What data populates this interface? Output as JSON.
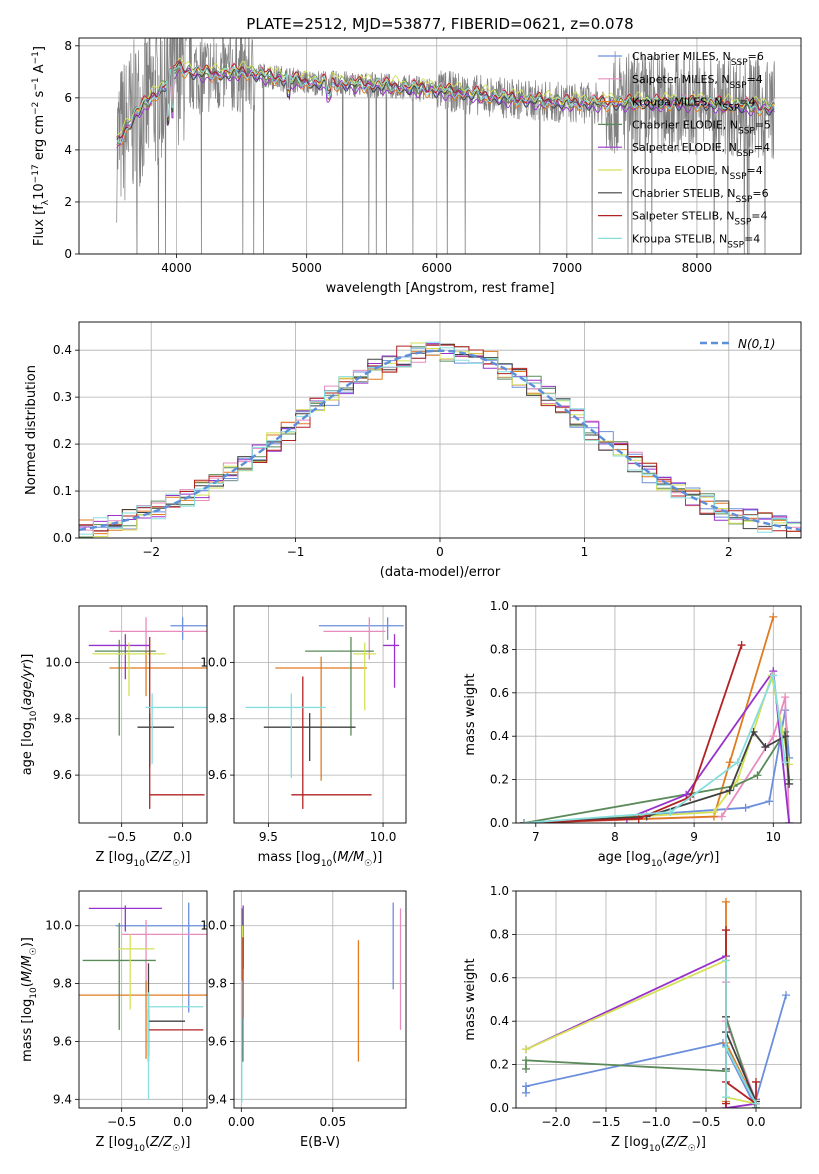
{
  "chart_data": [
    {
      "id": "spectrum",
      "type": "line",
      "title": "PLATE=2512, MJD=53877, FIBERID=0621, z=0.078",
      "xlabel": "wavelength [Angstrom, rest frame]",
      "ylabel": "Flux [f_λ10^-17 erg cm^-2 s^-1 A^-1]",
      "xlim": [
        3250,
        8800
      ],
      "ylim": [
        0,
        8.3
      ],
      "xticks": [
        4000,
        5000,
        6000,
        7000,
        8000
      ],
      "yticks": [
        0,
        2,
        4,
        6,
        8
      ],
      "data_range": [
        3540,
        8600
      ],
      "legend_location": "right",
      "legend": [
        {
          "label": "Chabrier MILES, N_SSP=6",
          "color": "#6b8fdc"
        },
        {
          "label": "Salpeter MILES, N_SSP=4",
          "color": "#e88bbd"
        },
        {
          "label": "Kroupa MILES, N_SSP=4",
          "color": "#e07b20"
        },
        {
          "label": "Chabrier ELODIE, N_SSP=5",
          "color": "#5a8a5a"
        },
        {
          "label": "Salpeter ELODIE, N_SSP=4",
          "color": "#9932cc"
        },
        {
          "label": "Kroupa ELODIE, N_SSP=4",
          "color": "#d4e157"
        },
        {
          "label": "Chabrier STELIB, N_SSP=6",
          "color": "#404040"
        },
        {
          "label": "Salpeter STELIB, N_SSP=4",
          "color": "#b22222"
        },
        {
          "label": "Kroupa STELIB, N_SSP=4",
          "color": "#87dede"
        }
      ],
      "continuum": {
        "x": [
          3540,
          3700,
          3900,
          4000,
          4100,
          4300,
          4500,
          5000,
          5500,
          6000,
          6500,
          7000,
          7500,
          8000,
          8600
        ],
        "y": [
          4.2,
          5.5,
          6.4,
          7.2,
          7.0,
          6.9,
          7.0,
          6.6,
          6.5,
          6.3,
          6.0,
          5.8,
          5.8,
          5.8,
          5.6
        ]
      }
    },
    {
      "id": "residuals",
      "type": "histogram",
      "xlabel": "(data-model)/error",
      "ylabel": "Normed distribution",
      "xlim": [
        -2.5,
        2.5
      ],
      "ylim": [
        0,
        0.46
      ],
      "xticks": [
        -2,
        -1,
        0,
        1,
        2
      ],
      "yticks": [
        0.0,
        0.1,
        0.2,
        0.3,
        0.4
      ],
      "bin_width": 0.1,
      "gaussian_label": "N(0,1)",
      "legend_location": "top-right",
      "grid": true
    },
    {
      "id": "age_vs_Z",
      "type": "errorbar",
      "xlabel": "Z [log10(Z/Z☉)]",
      "ylabel": "age  [log10(age/yr)]",
      "xlim": [
        -0.85,
        0.2
      ],
      "ylim": [
        9.43,
        10.2
      ],
      "xticks": [
        -0.5,
        0.0
      ],
      "yticks": [
        9.6,
        9.8,
        10.0
      ],
      "points": [
        {
          "x": 0.0,
          "y": 10.13,
          "xerr": [
            0.1,
            0.2
          ],
          "yerr": [
            0.05,
            0.03
          ],
          "color": "#6b8fdc"
        },
        {
          "x": -0.3,
          "y": 10.11,
          "xerr": [
            0.3,
            0.5
          ],
          "yerr": [
            0.08,
            0.05
          ],
          "color": "#e88bbd"
        },
        {
          "x": -0.3,
          "y": 9.98,
          "xerr": [
            0.3,
            0.5
          ],
          "yerr": [
            0.1,
            0.06
          ],
          "color": "#e07b20"
        },
        {
          "x": -0.52,
          "y": 10.04,
          "xerr": [
            0.2,
            0.3
          ],
          "yerr": [
            0.3,
            0.04
          ],
          "color": "#5a8a5a"
        },
        {
          "x": -0.47,
          "y": 10.06,
          "xerr": [
            0.3,
            0.2
          ],
          "yerr": [
            0.12,
            0.04
          ],
          "color": "#9932cc"
        },
        {
          "x": -0.44,
          "y": 10.03,
          "xerr": [
            0.3,
            0.3
          ],
          "yerr": [
            0.15,
            0.04
          ],
          "color": "#d4e157"
        },
        {
          "x": -0.27,
          "y": 9.77,
          "xerr": [
            0.1,
            0.2
          ],
          "yerr": [
            0.14,
            0.05
          ],
          "color": "#404040"
        },
        {
          "x": -0.27,
          "y": 9.53,
          "xerr": [
            0.0,
            0.45
          ],
          "yerr": [
            0.05,
            0.56
          ],
          "color": "#b22222"
        },
        {
          "x": -0.25,
          "y": 9.84,
          "xerr": [
            0.05,
            0.45
          ],
          "yerr": [
            0.2,
            0.05
          ],
          "color": "#87dede"
        }
      ]
    },
    {
      "id": "age_vs_mass",
      "type": "errorbar",
      "xlabel": "mass [log10(M/M☉)]",
      "ylabel": "",
      "xlim": [
        9.35,
        10.1
      ],
      "ylim": [
        9.43,
        10.2
      ],
      "xticks": [
        9.5,
        10.0
      ],
      "yticks": [
        9.6,
        9.8,
        10.0
      ],
      "points": [
        {
          "x": 10.02,
          "y": 10.13,
          "xerr": [
            0.3,
            0.07
          ],
          "yerr": [
            0.05,
            0.03
          ],
          "color": "#6b8fdc"
        },
        {
          "x": 9.94,
          "y": 10.11,
          "xerr": [
            0.2,
            0.07
          ],
          "yerr": [
            0.1,
            0.05
          ],
          "color": "#e88bbd"
        },
        {
          "x": 9.73,
          "y": 9.98,
          "xerr": [
            0.2,
            0.2
          ],
          "yerr": [
            0.4,
            0.04
          ],
          "color": "#e07b20"
        },
        {
          "x": 9.86,
          "y": 10.04,
          "xerr": [
            0.2,
            0.1
          ],
          "yerr": [
            0.3,
            0.05
          ],
          "color": "#5a8a5a"
        },
        {
          "x": 10.05,
          "y": 10.06,
          "xerr": [
            0.05,
            0.02
          ],
          "yerr": [
            0.15,
            0.04
          ],
          "color": "#9932cc"
        },
        {
          "x": 9.92,
          "y": 10.03,
          "xerr": [
            0.05,
            0.05
          ],
          "yerr": [
            0.2,
            0.04
          ],
          "color": "#d4e157"
        },
        {
          "x": 9.68,
          "y": 9.77,
          "xerr": [
            0.2,
            0.2
          ],
          "yerr": [
            0.12,
            0.05
          ],
          "color": "#404040"
        },
        {
          "x": 9.65,
          "y": 9.53,
          "xerr": [
            0.05,
            0.3
          ],
          "yerr": [
            0.05,
            0.42
          ],
          "color": "#b22222"
        },
        {
          "x": 9.6,
          "y": 9.84,
          "xerr": [
            0.2,
            0.15
          ],
          "yerr": [
            0.25,
            0.05
          ],
          "color": "#87dede"
        }
      ]
    },
    {
      "id": "weight_vs_age",
      "type": "line",
      "xlabel": "age  [log10(age/yr)]",
      "ylabel": "mass weight",
      "xlim": [
        6.75,
        10.35
      ],
      "ylim": [
        0.0,
        1.0
      ],
      "xticks": [
        7,
        8,
        9,
        10
      ],
      "yticks": [
        0.0,
        0.2,
        0.4,
        0.6,
        0.8,
        1.0
      ],
      "grid": true,
      "series": [
        {
          "color": "#6b8fdc",
          "x": [
            6.85,
            9.65,
            9.95,
            10.15,
            10.2
          ],
          "y": [
            0.0,
            0.07,
            0.1,
            0.52,
            0.3
          ]
        },
        {
          "color": "#e88bbd",
          "x": [
            6.85,
            9.35,
            10.0,
            10.15,
            10.2
          ],
          "y": [
            0.0,
            0.03,
            0.4,
            0.58,
            0.0
          ]
        },
        {
          "color": "#e07b20",
          "x": [
            6.85,
            9.25,
            9.45,
            10.0
          ],
          "y": [
            0.0,
            0.03,
            0.28,
            0.95
          ]
        },
        {
          "color": "#5a8a5a",
          "x": [
            6.85,
            9.5,
            9.8,
            10.15,
            10.2
          ],
          "y": [
            0.0,
            0.17,
            0.22,
            0.42,
            0.2
          ]
        },
        {
          "color": "#9932cc",
          "x": [
            6.85,
            8.15,
            8.9,
            10.0,
            10.2
          ],
          "y": [
            0.0,
            0.02,
            0.13,
            0.7,
            0.0
          ]
        },
        {
          "color": "#d4e157",
          "x": [
            6.85,
            9.25,
            9.55,
            9.98,
            10.2
          ],
          "y": [
            0.0,
            0.05,
            0.2,
            0.68,
            0.27
          ]
        },
        {
          "color": "#404040",
          "x": [
            6.85,
            8.4,
            9.45,
            9.75,
            9.9,
            10.15,
            10.2
          ],
          "y": [
            0.0,
            0.03,
            0.15,
            0.42,
            0.35,
            0.4,
            0.18
          ]
        },
        {
          "color": "#b22222",
          "x": [
            6.85,
            8.3,
            8.95,
            9.6
          ],
          "y": [
            0.0,
            0.02,
            0.12,
            0.82
          ]
        },
        {
          "color": "#87dede",
          "x": [
            6.85,
            8.7,
            9.55,
            10.0,
            10.15
          ],
          "y": [
            0.0,
            0.05,
            0.28,
            0.68,
            0.28
          ]
        }
      ]
    },
    {
      "id": "mass_vs_Z",
      "type": "errorbar",
      "xlabel": "Z [log10(Z/Z☉)]",
      "ylabel": "mass [log10(M/M☉)]",
      "xlim": [
        -0.85,
        0.2
      ],
      "ylim": [
        9.37,
        10.12
      ],
      "xticks": [
        -0.5,
        0.0
      ],
      "yticks": [
        9.4,
        9.6,
        9.8,
        10.0
      ],
      "points": [
        {
          "x": 0.05,
          "y": 10.0,
          "xerr": [
            0.6,
            0.15
          ],
          "yerr": [
            0.3,
            0.08
          ],
          "color": "#6b8fdc"
        },
        {
          "x": -0.3,
          "y": 9.97,
          "xerr": [
            0.2,
            0.5
          ],
          "yerr": [
            0.2,
            0.05
          ],
          "color": "#e88bbd"
        },
        {
          "x": -0.3,
          "y": 9.76,
          "xerr": [
            0.6,
            0.5
          ],
          "yerr": [
            0.22,
            0.05
          ],
          "color": "#e07b20"
        },
        {
          "x": -0.52,
          "y": 9.88,
          "xerr": [
            0.3,
            0.3
          ],
          "yerr": [
            0.24,
            0.13
          ],
          "color": "#5a8a5a"
        },
        {
          "x": -0.47,
          "y": 10.06,
          "xerr": [
            0.3,
            0.3
          ],
          "yerr": [
            0.08,
            0.01
          ],
          "color": "#9932cc"
        },
        {
          "x": -0.43,
          "y": 9.92,
          "xerr": [
            0.1,
            0.2
          ],
          "yerr": [
            0.21,
            0.05
          ],
          "color": "#d4e157"
        },
        {
          "x": -0.28,
          "y": 9.67,
          "xerr": [
            0.0,
            0.3
          ],
          "yerr": [
            0.14,
            0.2
          ],
          "color": "#404040"
        },
        {
          "x": -0.28,
          "y": 9.64,
          "xerr": [
            0.0,
            0.45
          ],
          "yerr": [
            0.09,
            0.07
          ],
          "color": "#b22222"
        },
        {
          "x": -0.28,
          "y": 9.72,
          "xerr": [
            0.0,
            0.45
          ],
          "yerr": [
            0.32,
            0.05
          ],
          "color": "#87dede"
        }
      ]
    },
    {
      "id": "mass_vs_ebv",
      "type": "errorbar",
      "xlabel": "E(B-V)",
      "ylabel": "",
      "xlim": [
        -0.004,
        0.09
      ],
      "ylim": [
        9.37,
        10.12
      ],
      "xticks": [
        0.0,
        0.05
      ],
      "yticks": [
        9.4,
        9.6,
        9.8,
        10.0
      ],
      "points": [
        {
          "x": 0.083,
          "y": 9.93,
          "xerr": [
            0,
            0
          ],
          "yerr": [
            0.15,
            0.15
          ],
          "color": "#6b8fdc"
        },
        {
          "x": 0.087,
          "y": 9.85,
          "xerr": [
            0,
            0
          ],
          "yerr": [
            0.21,
            0.21
          ],
          "color": "#e88bbd"
        },
        {
          "x": 0.064,
          "y": 9.74,
          "xerr": [
            0,
            0
          ],
          "yerr": [
            0.21,
            0.21
          ],
          "color": "#e07b20"
        },
        {
          "x": 0.0005,
          "y": 9.85,
          "xerr": [
            0,
            0
          ],
          "yerr": [
            0.21,
            0.21
          ],
          "color": "#5a8a5a"
        },
        {
          "x": 0.001,
          "y": 9.96,
          "xerr": [
            0,
            0
          ],
          "yerr": [
            0.11,
            0.11
          ],
          "color": "#9932cc"
        },
        {
          "x": 0.0007,
          "y": 9.9,
          "xerr": [
            0,
            0
          ],
          "yerr": [
            0.1,
            0.1
          ],
          "color": "#d4e157"
        },
        {
          "x": 0.0008,
          "y": 9.65,
          "xerr": [
            0,
            0
          ],
          "yerr": [
            0.12,
            0.12
          ],
          "color": "#404040"
        },
        {
          "x": 0.0009,
          "y": 9.82,
          "xerr": [
            0,
            0
          ],
          "yerr": [
            0.14,
            0.14
          ],
          "color": "#b22222"
        },
        {
          "x": 0.0003,
          "y": 9.6,
          "xerr": [
            0,
            0
          ],
          "yerr": [
            0.21,
            0.21
          ],
          "color": "#87dede"
        }
      ]
    },
    {
      "id": "weight_vs_Z",
      "type": "line",
      "xlabel": "Z [log10(Z/Z☉)]",
      "ylabel": "mass weight",
      "xlim": [
        -2.4,
        0.45
      ],
      "ylim": [
        0.0,
        1.0
      ],
      "xticks": [
        -2.0,
        -1.5,
        -1.0,
        -0.5,
        0.0
      ],
      "yticks": [
        0.0,
        0.2,
        0.4,
        0.6,
        0.8,
        1.0
      ],
      "grid": true,
      "series": [
        {
          "color": "#6b8fdc",
          "x": [
            -2.3,
            -2.3,
            -0.33,
            0.0,
            0.0,
            0.3
          ],
          "y": [
            0.07,
            0.1,
            0.3,
            0.0,
            0.04,
            0.52
          ]
        },
        {
          "color": "#e88bbd",
          "x": [
            -0.3,
            -0.3,
            -0.3,
            0.0
          ],
          "y": [
            0.0,
            0.58,
            0.4,
            0.03
          ]
        },
        {
          "color": "#e07b20",
          "x": [
            -0.3,
            -0.3,
            -0.3,
            0.0
          ],
          "y": [
            0.03,
            0.95,
            0.3,
            0.02
          ]
        },
        {
          "color": "#5a8a5a",
          "x": [
            -2.3,
            -2.3,
            -0.3,
            -0.3,
            0.0
          ],
          "y": [
            0.18,
            0.22,
            0.17,
            0.42,
            0.0
          ]
        },
        {
          "color": "#9932cc",
          "x": [
            -2.3,
            -0.3,
            -0.3,
            0.0
          ],
          "y": [
            0.27,
            0.7,
            0.0,
            0.02
          ]
        },
        {
          "color": "#d4e157",
          "x": [
            -2.3,
            -0.3,
            -0.3,
            0.0
          ],
          "y": [
            0.27,
            0.68,
            0.05,
            0.02
          ]
        },
        {
          "color": "#404040",
          "x": [
            -0.3,
            -0.3,
            -0.3,
            0.0,
            0.0
          ],
          "y": [
            0.18,
            0.42,
            0.35,
            0.03,
            0.0
          ]
        },
        {
          "color": "#b22222",
          "x": [
            -0.3,
            -0.3,
            -0.3,
            0.0,
            0.0
          ],
          "y": [
            0.02,
            0.82,
            0.12,
            0.02,
            0.12
          ]
        },
        {
          "color": "#87dede",
          "x": [
            -0.3,
            -0.3,
            -0.3,
            0.0
          ],
          "y": [
            0.05,
            0.68,
            0.28,
            0.02
          ]
        }
      ]
    }
  ]
}
